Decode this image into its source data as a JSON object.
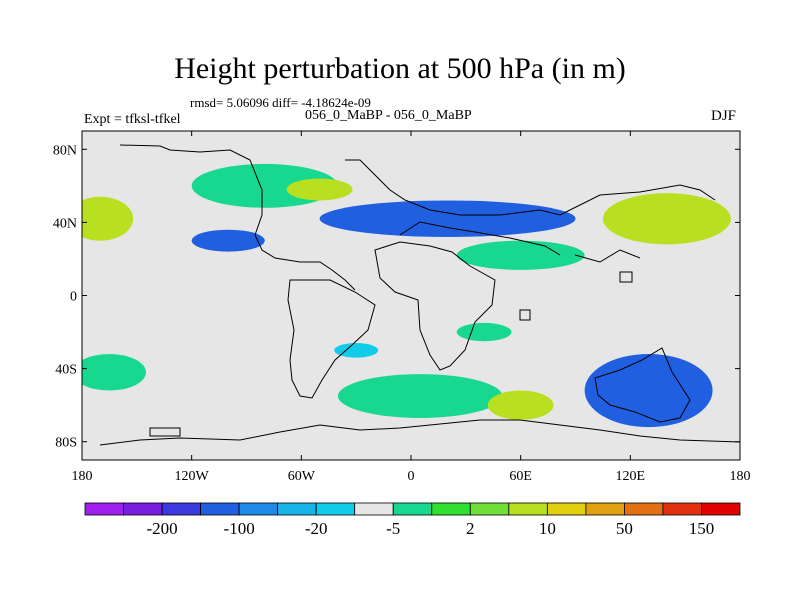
{
  "chart_data": {
    "type": "heatmap",
    "title": "Height perturbation at 500 hPa (in m)",
    "stats_text": "rmsd= 5.06096 diff= -4.18624e-09",
    "subtitle": "056_0_MaBP - 056_0_MaBP",
    "left_label": "Expt = tfksl-tfkel",
    "right_label": "DJF",
    "x_ticks": [
      "180",
      "120W",
      "60W",
      "0",
      "60E",
      "120E",
      "180"
    ],
    "x_tick_values": [
      -180,
      -120,
      -60,
      0,
      60,
      120,
      180
    ],
    "y_ticks": [
      "80N",
      "40N",
      "0",
      "40S",
      "80S"
    ],
    "y_tick_values": [
      80,
      40,
      0,
      -40,
      -80
    ],
    "xlim": [
      -180,
      180
    ],
    "ylim": [
      -90,
      90
    ],
    "colorbar": {
      "labels": [
        "-200",
        "-100",
        "-20",
        "-5",
        "2",
        "10",
        "50",
        "150"
      ],
      "colors": [
        "#a020f0",
        "#7a1ee0",
        "#3a3ae0",
        "#2060e0",
        "#1e8ae8",
        "#18b4e8",
        "#10cce8",
        "#e6e6e6",
        "#18d890",
        "#30e030",
        "#70e038",
        "#b8e020",
        "#e0d010",
        "#e0a010",
        "#e07010",
        "#e03010",
        "#e00000"
      ]
    },
    "regions": [
      {
        "lon": -80,
        "lat": 60,
        "rx": 40,
        "ry": 12,
        "level": "positive"
      },
      {
        "lon": -50,
        "lat": 58,
        "rx": 18,
        "ry": 6,
        "level": "high-positive"
      },
      {
        "lon": -170,
        "lat": 42,
        "rx": 18,
        "ry": 12,
        "level": "high-positive"
      },
      {
        "lon": 140,
        "lat": 42,
        "rx": 35,
        "ry": 14,
        "level": "high-positive"
      },
      {
        "lon": 20,
        "lat": 42,
        "rx": 70,
        "ry": 10,
        "level": "negative"
      },
      {
        "lon": -100,
        "lat": 30,
        "rx": 20,
        "ry": 6,
        "level": "negative"
      },
      {
        "lon": 60,
        "lat": 22,
        "rx": 35,
        "ry": 8,
        "level": "positive"
      },
      {
        "lon": -165,
        "lat": -42,
        "rx": 20,
        "ry": 10,
        "level": "positive"
      },
      {
        "lon": 5,
        "lat": -55,
        "rx": 45,
        "ry": 12,
        "level": "positive"
      },
      {
        "lon": 60,
        "lat": -60,
        "rx": 18,
        "ry": 8,
        "level": "high-positive"
      },
      {
        "lon": 130,
        "lat": -52,
        "rx": 35,
        "ry": 20,
        "level": "negative"
      },
      {
        "lon": 40,
        "lat": -20,
        "rx": 15,
        "ry": 5,
        "level": "positive"
      },
      {
        "lon": -30,
        "lat": -30,
        "rx": 12,
        "ry": 4,
        "level": "weak-negative"
      }
    ]
  }
}
